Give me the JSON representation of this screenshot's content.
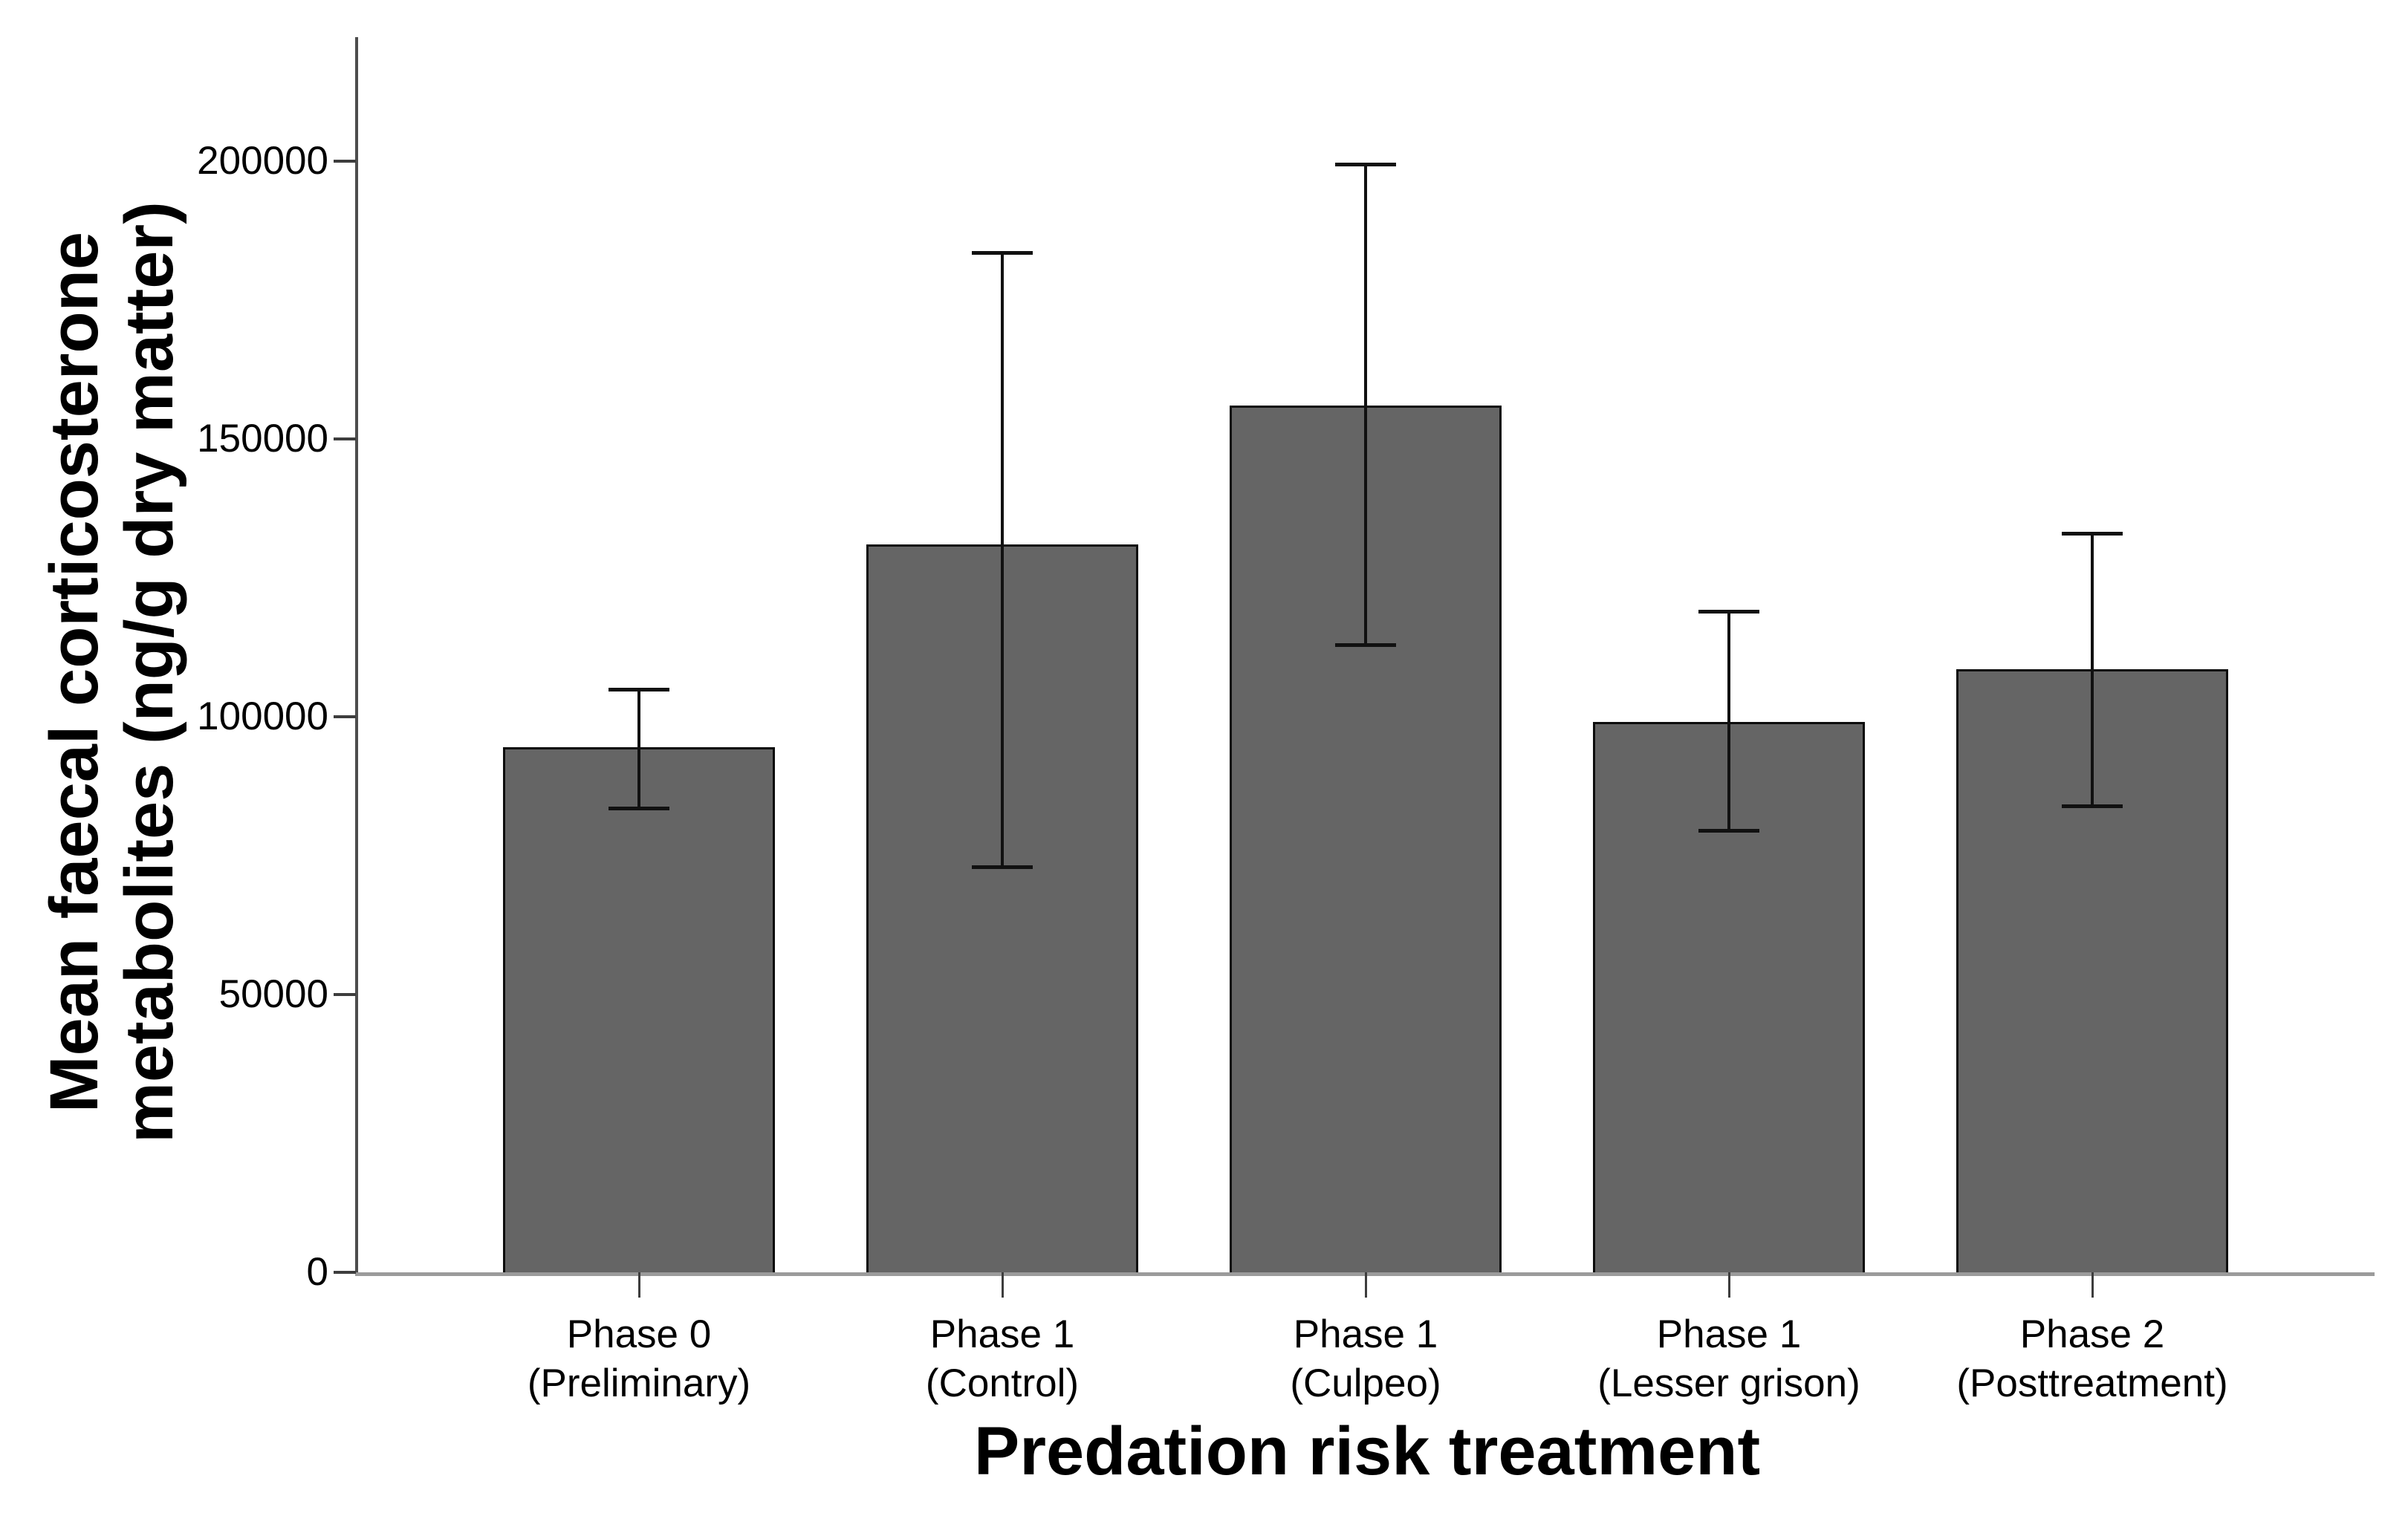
{
  "figure": {
    "y_axis": {
      "title_line1": "Mean faecal corticosterone",
      "title_line2": "metabolites (ng/g dry matter)"
    },
    "x_axis": {
      "title": "Predation risk treatment"
    }
  },
  "chart_data": {
    "type": "bar",
    "title": "",
    "xlabel": "Predation risk treatment",
    "ylabel": "Mean faecal corticosterone metabolites (ng/g dry matter)",
    "categories": [
      [
        "Phase 0",
        "(Preliminary)"
      ],
      [
        "Phase 1",
        "(Control)"
      ],
      [
        "Phase 1",
        "(Culpeo)"
      ],
      [
        "Phase 1",
        "(Lesser grison)"
      ],
      [
        "Phase 2",
        "(Posttreatment)"
      ]
    ],
    "values": [
      94500,
      131000,
      156000,
      99000,
      108500
    ],
    "error_low": [
      83500,
      73000,
      113000,
      79500,
      84000
    ],
    "error_high": [
      105000,
      183500,
      199500,
      119000,
      133000
    ],
    "yticks": [
      0,
      50000,
      100000,
      150000,
      200000
    ],
    "ytick_labels": [
      "0",
      "50000",
      "100000",
      "150000",
      "200000"
    ],
    "ylim": [
      0,
      222000
    ],
    "grid": false,
    "legend_position": "none",
    "bar_color": "#656565",
    "bar_edge_color": "#0d0d0d",
    "error_bar_color": "#111111"
  }
}
